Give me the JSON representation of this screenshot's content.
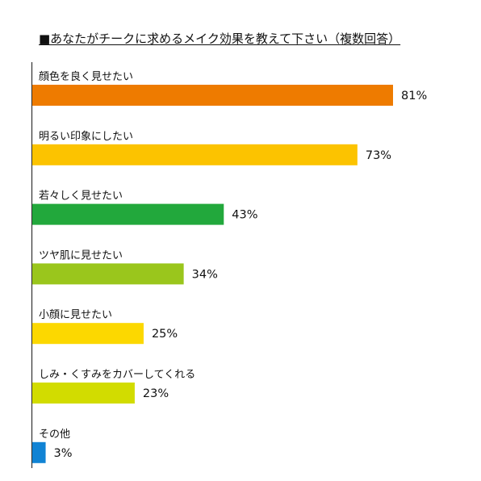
{
  "chart_data": {
    "type": "bar",
    "orientation": "horizontal",
    "title": "■あなたがチークに求めるメイク効果を教えて下さい（複数回答）",
    "xlim": [
      0,
      100
    ],
    "grid": false,
    "categories": [
      "顔色を良く見せたい",
      "明るい印象にしたい",
      "若々しく見せたい",
      "ツヤ肌に見せたい",
      "小顔に見せたい",
      "しみ・くすみをカバーしてくれる",
      "その他"
    ],
    "values": [
      81,
      73,
      43,
      34,
      25,
      23,
      3
    ],
    "value_labels": [
      "81%",
      "73%",
      "43%",
      "34%",
      "25%",
      "23%",
      "3%"
    ],
    "colors": [
      "#ee7b00",
      "#fcc300",
      "#22a83c",
      "#9ac61c",
      "#fcd800",
      "#d2dc00",
      "#1183d4"
    ]
  }
}
